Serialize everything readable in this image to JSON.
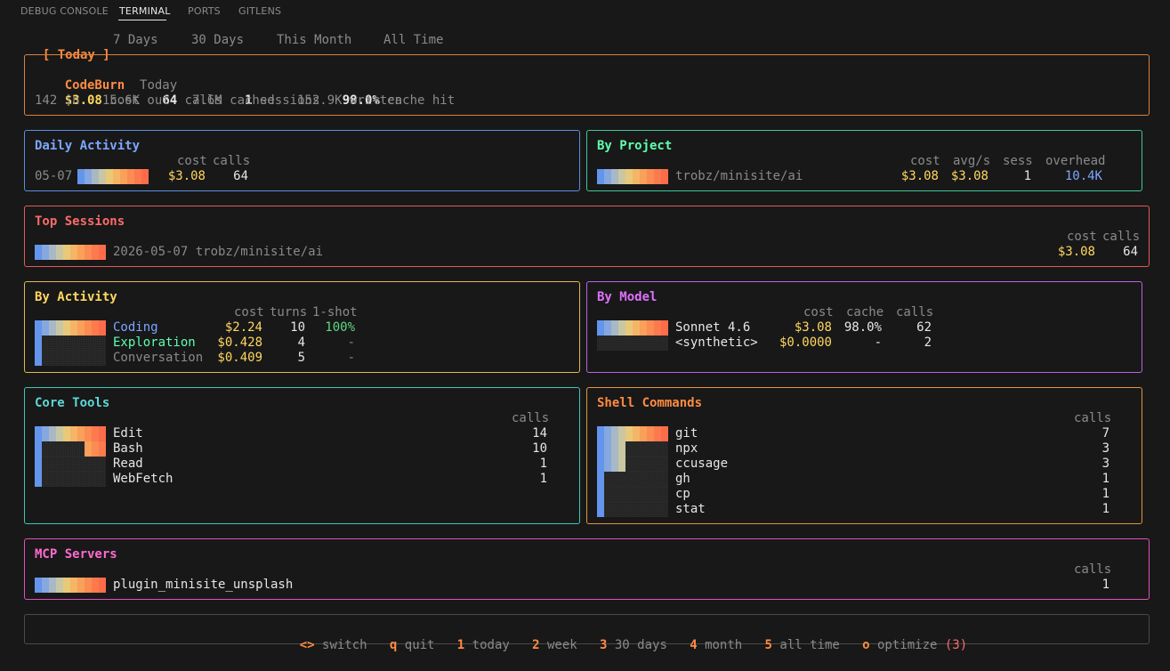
{
  "tabs": {
    "debug": "DEBUG CONSOLE",
    "terminal": "TERMINAL",
    "ports": "PORTS",
    "gitlens": "GITLENS"
  },
  "periods": {
    "today": "[ Today ]",
    "d7": "7 Days",
    "d30": "30 Days",
    "month": "This Month",
    "all": "All Time"
  },
  "summary": {
    "app": "CodeBurn",
    "period": "Today",
    "cost": "$3.08",
    "cost_label": "cost",
    "calls": "64",
    "calls_label": "calls",
    "sessions": "1",
    "sessions_label": "sessions",
    "cache": "98.0%",
    "cache_label": "cache hit",
    "line2": "142 in   15.6K out   7.6M cached   152.9K written"
  },
  "daily": {
    "title": "Daily Activity",
    "col_cost": "cost",
    "col_calls": "calls",
    "date": "05-07",
    "cost": "$3.08",
    "calls": "64"
  },
  "project": {
    "title": "By Project",
    "col_cost": "cost",
    "col_avg": "avg/s",
    "col_sess": "sess",
    "col_overhead": "overhead",
    "name": "trobz/minisite/ai",
    "cost": "$3.08",
    "avg": "$3.08",
    "sess": "1",
    "overhead": "10.4K"
  },
  "sessions": {
    "title": "Top Sessions",
    "col_cost": "cost",
    "col_calls": "calls",
    "name": "2026-05-07 trobz/minisite/ai",
    "cost": "$3.08",
    "calls": "64"
  },
  "activity": {
    "title": "By Activity",
    "col_cost": "cost",
    "col_turns": "turns",
    "col_oneshot": "1-shot",
    "rows": [
      {
        "name": "Coding",
        "cost": "$2.24",
        "turns": "10",
        "oneshot": "100%"
      },
      {
        "name": "Exploration",
        "cost": "$0.428",
        "turns": "4",
        "oneshot": "-"
      },
      {
        "name": "Conversation",
        "cost": "$0.409",
        "turns": "5",
        "oneshot": "-"
      }
    ]
  },
  "model": {
    "title": "By Model",
    "col_cost": "cost",
    "col_cache": "cache",
    "col_calls": "calls",
    "rows": [
      {
        "name": "Sonnet 4.6",
        "cost": "$3.08",
        "cache": "98.0%",
        "calls": "62"
      },
      {
        "name": "<synthetic>",
        "cost": "$0.0000",
        "cache": "-",
        "calls": "2"
      }
    ]
  },
  "tools": {
    "title": "Core Tools",
    "col_calls": "calls",
    "rows": [
      {
        "name": "Edit",
        "calls": "14"
      },
      {
        "name": "Bash",
        "calls": "10"
      },
      {
        "name": "Read",
        "calls": "1"
      },
      {
        "name": "WebFetch",
        "calls": "1"
      }
    ]
  },
  "shell": {
    "title": "Shell Commands",
    "col_calls": "calls",
    "rows": [
      {
        "name": "git",
        "calls": "7"
      },
      {
        "name": "npx",
        "calls": "3"
      },
      {
        "name": "ccusage",
        "calls": "3"
      },
      {
        "name": "gh",
        "calls": "1"
      },
      {
        "name": "cp",
        "calls": "1"
      },
      {
        "name": "stat",
        "calls": "1"
      }
    ]
  },
  "mcp": {
    "title": "MCP Servers",
    "col_calls": "calls",
    "name": "plugin_minisite_unsplash",
    "calls": "1"
  },
  "footer": {
    "k_switch": "<>",
    "l_switch": "switch",
    "k_quit": "q",
    "l_quit": "quit",
    "k_today": "1",
    "l_today": "today",
    "k_week": "2",
    "l_week": "week",
    "k_30": "3",
    "l_30": "30 days",
    "k_month": "4",
    "l_month": "month",
    "k_all": "5",
    "l_all": "all time",
    "k_opt": "o",
    "l_opt": "optimize",
    "opt_count": "(3)"
  },
  "colors": {
    "gradient": [
      "#6495ed",
      "#86a8e0",
      "#a9b8c6",
      "#c9c7a3",
      "#e8c97a",
      "#f5b566",
      "#f9a05a",
      "#fb8c52",
      "#fc7a4e",
      "#fd6c4a"
    ]
  }
}
